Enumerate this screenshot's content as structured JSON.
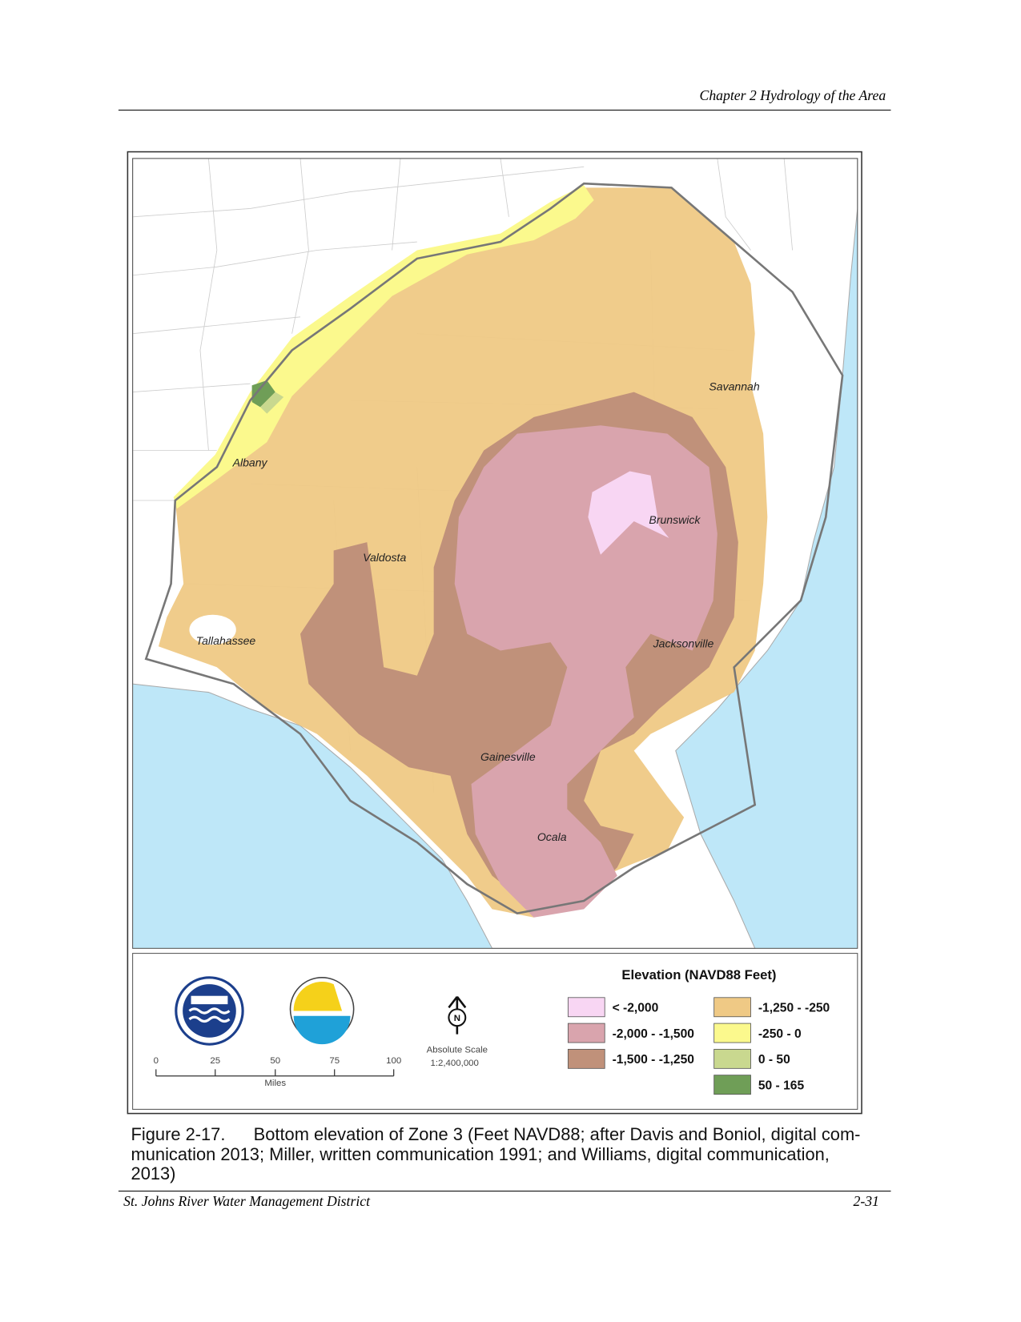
{
  "header": "Chapter 2 Hydrology of the Area",
  "map": {
    "cities": [
      "Savannah",
      "Albany",
      "Brunswick",
      "Valdosta",
      "Tallahassee",
      "Jacksonville",
      "Gainesville",
      "Ocala"
    ],
    "legend": {
      "title": "Elevation (NAVD88 Feet)",
      "items": [
        {
          "label": "< -2,000",
          "color": "#f8d6f3"
        },
        {
          "label": "-2,000 - -1,500",
          "color": "#d9a4ad"
        },
        {
          "label": "-1,500 - -1,250",
          "color": "#c0917a"
        },
        {
          "label": "-1,250 - -250",
          "color": "#efc985"
        },
        {
          "label": "-250 - 0",
          "color": "#fbf98d"
        },
        {
          "label": "0 - 50",
          "color": "#c9d88f"
        },
        {
          "label": "50 - 165",
          "color": "#6f9e57"
        }
      ]
    },
    "north": "N",
    "scale_ticks": [
      "0",
      "25",
      "50",
      "75",
      "100"
    ],
    "scale_unit": "Miles",
    "scale_note": [
      "Absolute Scale",
      "1:2,400,000"
    ]
  },
  "caption": {
    "number": "Figure 2-17.",
    "lines": [
      "Bottom elevation of Zone 3 (Feet NAVD88; after Davis and Boniol, digital com-",
      "munication 2013; Miller, written communication 1991; and Williams, digital communication,",
      "2013)"
    ]
  },
  "footer": {
    "left": "St. Johns River Water Management District",
    "right": "2-31"
  }
}
